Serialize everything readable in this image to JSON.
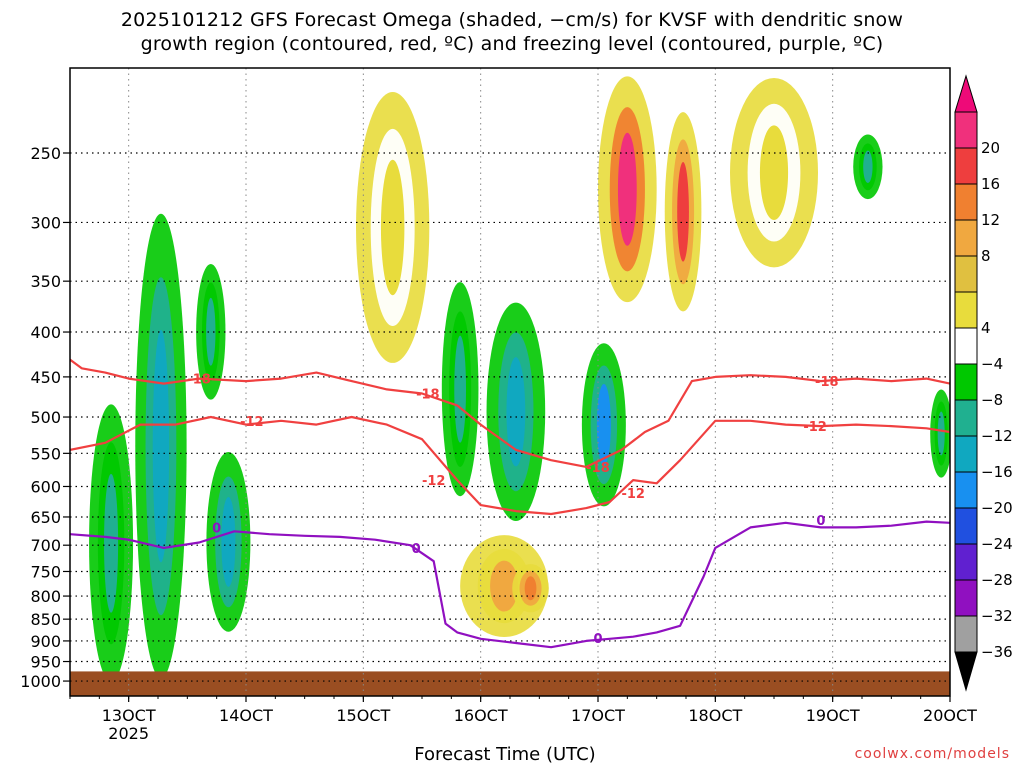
{
  "chart_data": {
    "type": "heatmap",
    "title_lines": [
      "2025101212 GFS Forecast Omega (shaded, −cm/s) for KVSF with dendritic snow",
      "growth region (contoured, red, ºC) and freezing level (contoured, purple, ºC)"
    ],
    "xlabel": "Forecast Time (UTC)",
    "x_ticks": [
      "13OCT",
      "14OCT",
      "15OCT",
      "16OCT",
      "17OCT",
      "18OCT",
      "19OCT",
      "20OCT"
    ],
    "x_year_label": "2025",
    "y_ticks": [
      250,
      300,
      350,
      400,
      450,
      500,
      550,
      600,
      650,
      700,
      750,
      800,
      850,
      900,
      950,
      1000
    ],
    "ylim": [
      1040,
      200
    ],
    "y_scale": "log-pressure",
    "grid": true,
    "colorbar": {
      "labels": [
        "20",
        "16",
        "12",
        "8",
        "4",
        "−4",
        "−8",
        "−12",
        "−16",
        "−20",
        "−24",
        "−28",
        "−32",
        "−36"
      ],
      "colors": [
        "#f0307c",
        "#ee3e3e",
        "#f08030",
        "#f0a840",
        "#e0c040",
        "#e8dc3c",
        "#ffffff",
        "#00c800",
        "#20b090",
        "#10a8c0",
        "#1890f0",
        "#2050e0",
        "#6020d0",
        "#9010c0",
        "#a0a0a0"
      ],
      "max_arrow_color": "#ee0a78",
      "min_arrow_color": "#000000"
    },
    "omega_regions": [
      {
        "t": [
          13.1,
          13.45
        ],
        "p": [
          310,
          940
        ],
        "value": -12
      },
      {
        "t": [
          12.7,
          13.0
        ],
        "p": [
          500,
          970
        ],
        "value": -8
      },
      {
        "t": [
          13.6,
          13.8
        ],
        "p": [
          340,
          470
        ],
        "value": -8
      },
      {
        "t": [
          13.7,
          14.0
        ],
        "p": [
          560,
          860
        ],
        "value": -12
      },
      {
        "t": [
          15.7,
          15.95
        ],
        "p": [
          360,
          600
        ],
        "value": -8
      },
      {
        "t": [
          16.1,
          16.5
        ],
        "p": [
          380,
          640
        ],
        "value": -12
      },
      {
        "t": [
          16.9,
          17.2
        ],
        "p": [
          420,
          620
        ],
        "value": -16
      },
      {
        "t": [
          17.05,
          17.45
        ],
        "p": [
          210,
          360
        ],
        "value": 20
      },
      {
        "t": [
          17.6,
          17.85
        ],
        "p": [
          230,
          370
        ],
        "value": 16
      },
      {
        "t": [
          15.9,
          16.5
        ],
        "p": [
          690,
          880
        ],
        "value": 8
      },
      {
        "t": [
          16.3,
          16.55
        ],
        "p": [
          740,
          830
        ],
        "value": 12
      },
      {
        "t": [
          15.0,
          15.5
        ],
        "p": [
          220,
          420
        ],
        "value": 4
      },
      {
        "t": [
          18.2,
          18.8
        ],
        "p": [
          210,
          330
        ],
        "value": 4
      },
      {
        "t": [
          19.2,
          19.4
        ],
        "p": [
          240,
          280
        ],
        "value": -8
      },
      {
        "t": [
          19.85,
          20.0
        ],
        "p": [
          470,
          580
        ],
        "value": -8
      }
    ],
    "series": [
      {
        "name": "-18",
        "color": "#f04040",
        "x": [
          12.5,
          12.6,
          12.8,
          13.0,
          13.3,
          13.6,
          14.0,
          14.3,
          14.6,
          14.9,
          15.2,
          15.5,
          15.8,
          16.0,
          16.3,
          16.6,
          16.9,
          17.2,
          17.4,
          17.6,
          17.8,
          18.0,
          18.3,
          18.6,
          18.9,
          19.2,
          19.5,
          19.8,
          20.0
        ],
        "y": [
          430,
          440,
          445,
          452,
          458,
          452,
          455,
          452,
          445,
          455,
          465,
          470,
          485,
          510,
          545,
          560,
          570,
          545,
          520,
          505,
          455,
          450,
          448,
          450,
          455,
          452,
          455,
          452,
          458
        ]
      },
      {
        "name": "-12",
        "color": "#f04040",
        "x": [
          12.5,
          12.8,
          13.1,
          13.4,
          13.7,
          14.0,
          14.3,
          14.6,
          14.9,
          15.2,
          15.5,
          15.8,
          16.0,
          16.3,
          16.6,
          16.9,
          17.1,
          17.3,
          17.5,
          17.7,
          18.0,
          18.3,
          18.6,
          18.9,
          19.2,
          19.5,
          19.8,
          20.0
        ],
        "y": [
          545,
          535,
          510,
          510,
          500,
          510,
          505,
          510,
          500,
          510,
          530,
          590,
          630,
          640,
          645,
          635,
          625,
          590,
          595,
          560,
          505,
          505,
          510,
          512,
          510,
          512,
          515,
          520
        ]
      },
      {
        "name": "0",
        "color": "#9010c0",
        "x": [
          12.5,
          12.8,
          13.0,
          13.3,
          13.6,
          13.9,
          14.2,
          14.5,
          14.8,
          15.1,
          15.4,
          15.6,
          15.7,
          15.8,
          16.0,
          16.3,
          16.6,
          16.9,
          17.1,
          17.3,
          17.5,
          17.7,
          17.9,
          18.0,
          18.3,
          18.6,
          18.9,
          19.2,
          19.5,
          19.8,
          20.0
        ],
        "y": [
          680,
          685,
          690,
          705,
          695,
          675,
          680,
          683,
          685,
          690,
          700,
          730,
          860,
          880,
          895,
          905,
          915,
          900,
          895,
          890,
          880,
          865,
          760,
          705,
          668,
          660,
          668,
          668,
          665,
          658,
          660
        ]
      }
    ],
    "contour_labels": [
      {
        "text": "-18",
        "t": 13.6,
        "p": 452,
        "color": "#f04040"
      },
      {
        "text": "-18",
        "t": 15.55,
        "p": 470,
        "color": "#f04040"
      },
      {
        "text": "-18",
        "t": 17.0,
        "p": 570,
        "color": "#f04040"
      },
      {
        "text": "-18",
        "t": 18.95,
        "p": 455,
        "color": "#f04040"
      },
      {
        "text": "-12",
        "t": 14.05,
        "p": 505,
        "color": "#f04040"
      },
      {
        "text": "-12",
        "t": 15.6,
        "p": 590,
        "color": "#f04040"
      },
      {
        "text": "-12",
        "t": 17.3,
        "p": 610,
        "color": "#f04040"
      },
      {
        "text": "-12",
        "t": 18.85,
        "p": 512,
        "color": "#f04040"
      },
      {
        "text": "0",
        "t": 13.75,
        "p": 668,
        "color": "#9010c0"
      },
      {
        "text": "0",
        "t": 15.45,
        "p": 705,
        "color": "#9010c0"
      },
      {
        "text": "0",
        "t": 17.0,
        "p": 893,
        "color": "#9010c0"
      },
      {
        "text": "0",
        "t": 18.9,
        "p": 655,
        "color": "#9010c0"
      }
    ],
    "ground": {
      "p_top": 975,
      "color": "#9a4e22"
    }
  },
  "credit": "coolwx.com/models"
}
